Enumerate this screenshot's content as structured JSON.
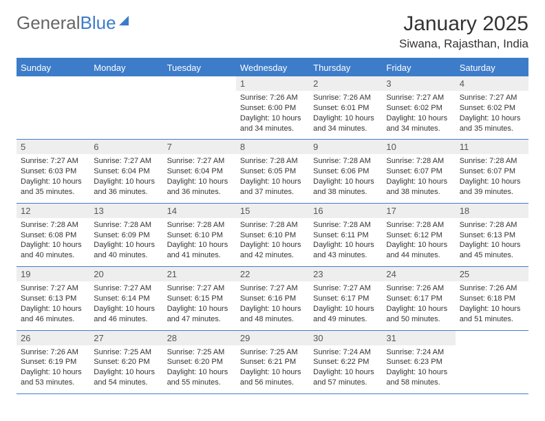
{
  "logo": {
    "text_gray": "General",
    "text_blue": "Blue"
  },
  "title": "January 2025",
  "location": "Siwana, Rajasthan, India",
  "colors": {
    "header_bg": "#3d7cc9",
    "header_text": "#ffffff",
    "daynum_bg": "#eeeeee",
    "body_text": "#333333",
    "border": "#3d7cc9"
  },
  "day_headers": [
    "Sunday",
    "Monday",
    "Tuesday",
    "Wednesday",
    "Thursday",
    "Friday",
    "Saturday"
  ],
  "weeks": [
    [
      null,
      null,
      null,
      {
        "n": "1",
        "sr": "7:26 AM",
        "ss": "6:00 PM",
        "dl": "10 hours and 34 minutes."
      },
      {
        "n": "2",
        "sr": "7:26 AM",
        "ss": "6:01 PM",
        "dl": "10 hours and 34 minutes."
      },
      {
        "n": "3",
        "sr": "7:27 AM",
        "ss": "6:02 PM",
        "dl": "10 hours and 34 minutes."
      },
      {
        "n": "4",
        "sr": "7:27 AM",
        "ss": "6:02 PM",
        "dl": "10 hours and 35 minutes."
      }
    ],
    [
      {
        "n": "5",
        "sr": "7:27 AM",
        "ss": "6:03 PM",
        "dl": "10 hours and 35 minutes."
      },
      {
        "n": "6",
        "sr": "7:27 AM",
        "ss": "6:04 PM",
        "dl": "10 hours and 36 minutes."
      },
      {
        "n": "7",
        "sr": "7:27 AM",
        "ss": "6:04 PM",
        "dl": "10 hours and 36 minutes."
      },
      {
        "n": "8",
        "sr": "7:28 AM",
        "ss": "6:05 PM",
        "dl": "10 hours and 37 minutes."
      },
      {
        "n": "9",
        "sr": "7:28 AM",
        "ss": "6:06 PM",
        "dl": "10 hours and 38 minutes."
      },
      {
        "n": "10",
        "sr": "7:28 AM",
        "ss": "6:07 PM",
        "dl": "10 hours and 38 minutes."
      },
      {
        "n": "11",
        "sr": "7:28 AM",
        "ss": "6:07 PM",
        "dl": "10 hours and 39 minutes."
      }
    ],
    [
      {
        "n": "12",
        "sr": "7:28 AM",
        "ss": "6:08 PM",
        "dl": "10 hours and 40 minutes."
      },
      {
        "n": "13",
        "sr": "7:28 AM",
        "ss": "6:09 PM",
        "dl": "10 hours and 40 minutes."
      },
      {
        "n": "14",
        "sr": "7:28 AM",
        "ss": "6:10 PM",
        "dl": "10 hours and 41 minutes."
      },
      {
        "n": "15",
        "sr": "7:28 AM",
        "ss": "6:10 PM",
        "dl": "10 hours and 42 minutes."
      },
      {
        "n": "16",
        "sr": "7:28 AM",
        "ss": "6:11 PM",
        "dl": "10 hours and 43 minutes."
      },
      {
        "n": "17",
        "sr": "7:28 AM",
        "ss": "6:12 PM",
        "dl": "10 hours and 44 minutes."
      },
      {
        "n": "18",
        "sr": "7:28 AM",
        "ss": "6:13 PM",
        "dl": "10 hours and 45 minutes."
      }
    ],
    [
      {
        "n": "19",
        "sr": "7:27 AM",
        "ss": "6:13 PM",
        "dl": "10 hours and 46 minutes."
      },
      {
        "n": "20",
        "sr": "7:27 AM",
        "ss": "6:14 PM",
        "dl": "10 hours and 46 minutes."
      },
      {
        "n": "21",
        "sr": "7:27 AM",
        "ss": "6:15 PM",
        "dl": "10 hours and 47 minutes."
      },
      {
        "n": "22",
        "sr": "7:27 AM",
        "ss": "6:16 PM",
        "dl": "10 hours and 48 minutes."
      },
      {
        "n": "23",
        "sr": "7:27 AM",
        "ss": "6:17 PM",
        "dl": "10 hours and 49 minutes."
      },
      {
        "n": "24",
        "sr": "7:26 AM",
        "ss": "6:17 PM",
        "dl": "10 hours and 50 minutes."
      },
      {
        "n": "25",
        "sr": "7:26 AM",
        "ss": "6:18 PM",
        "dl": "10 hours and 51 minutes."
      }
    ],
    [
      {
        "n": "26",
        "sr": "7:26 AM",
        "ss": "6:19 PM",
        "dl": "10 hours and 53 minutes."
      },
      {
        "n": "27",
        "sr": "7:25 AM",
        "ss": "6:20 PM",
        "dl": "10 hours and 54 minutes."
      },
      {
        "n": "28",
        "sr": "7:25 AM",
        "ss": "6:20 PM",
        "dl": "10 hours and 55 minutes."
      },
      {
        "n": "29",
        "sr": "7:25 AM",
        "ss": "6:21 PM",
        "dl": "10 hours and 56 minutes."
      },
      {
        "n": "30",
        "sr": "7:24 AM",
        "ss": "6:22 PM",
        "dl": "10 hours and 57 minutes."
      },
      {
        "n": "31",
        "sr": "7:24 AM",
        "ss": "6:23 PM",
        "dl": "10 hours and 58 minutes."
      },
      null
    ]
  ],
  "labels": {
    "sunrise": "Sunrise:",
    "sunset": "Sunset:",
    "daylight": "Daylight:"
  }
}
